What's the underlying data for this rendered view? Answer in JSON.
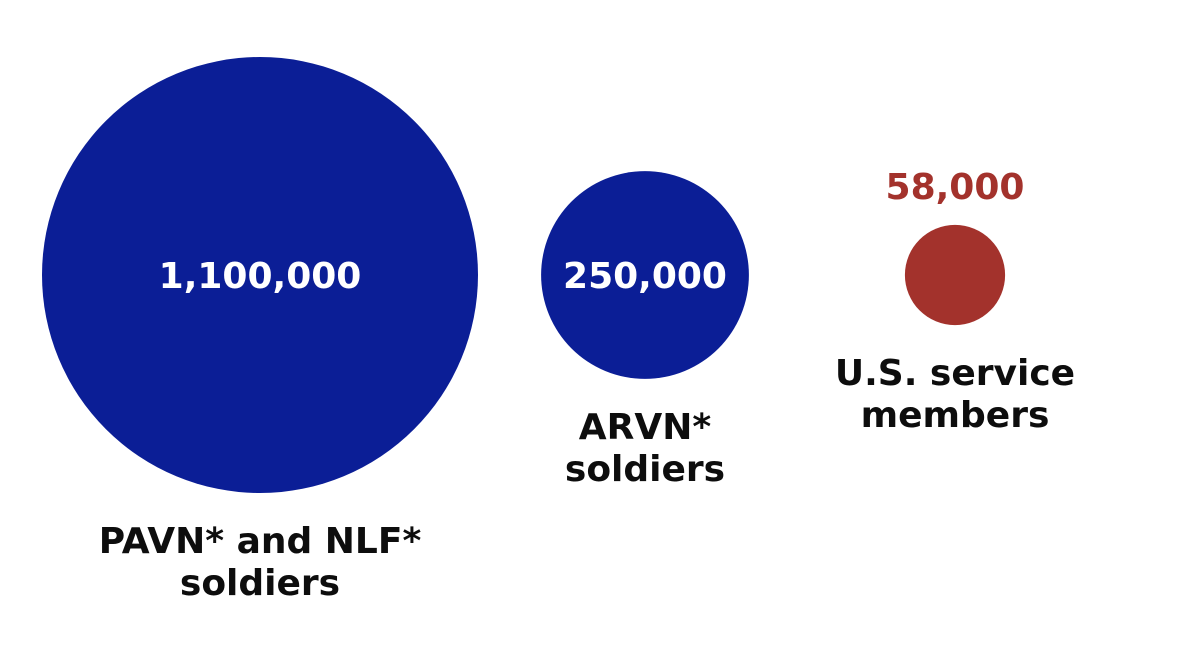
{
  "chart_data": {
    "type": "bubble",
    "encoding": "circle area proportional to value",
    "series": [
      {
        "label": [
          "PAVN* and NLF*",
          "soldiers"
        ],
        "value": 1100000,
        "value_label": "1,100,000",
        "color": "#0b1e96",
        "value_color": "#ffffff",
        "value_position": "inside"
      },
      {
        "label": [
          "ARVN*",
          "soldiers"
        ],
        "value": 250000,
        "value_label": "250,000",
        "color": "#0b1e96",
        "value_color": "#ffffff",
        "value_position": "inside"
      },
      {
        "label": [
          "U.S. service",
          "members"
        ],
        "value": 58000,
        "value_label": "58,000",
        "color": "#a3322c",
        "value_color": "#a3322c",
        "value_position": "above"
      }
    ]
  }
}
